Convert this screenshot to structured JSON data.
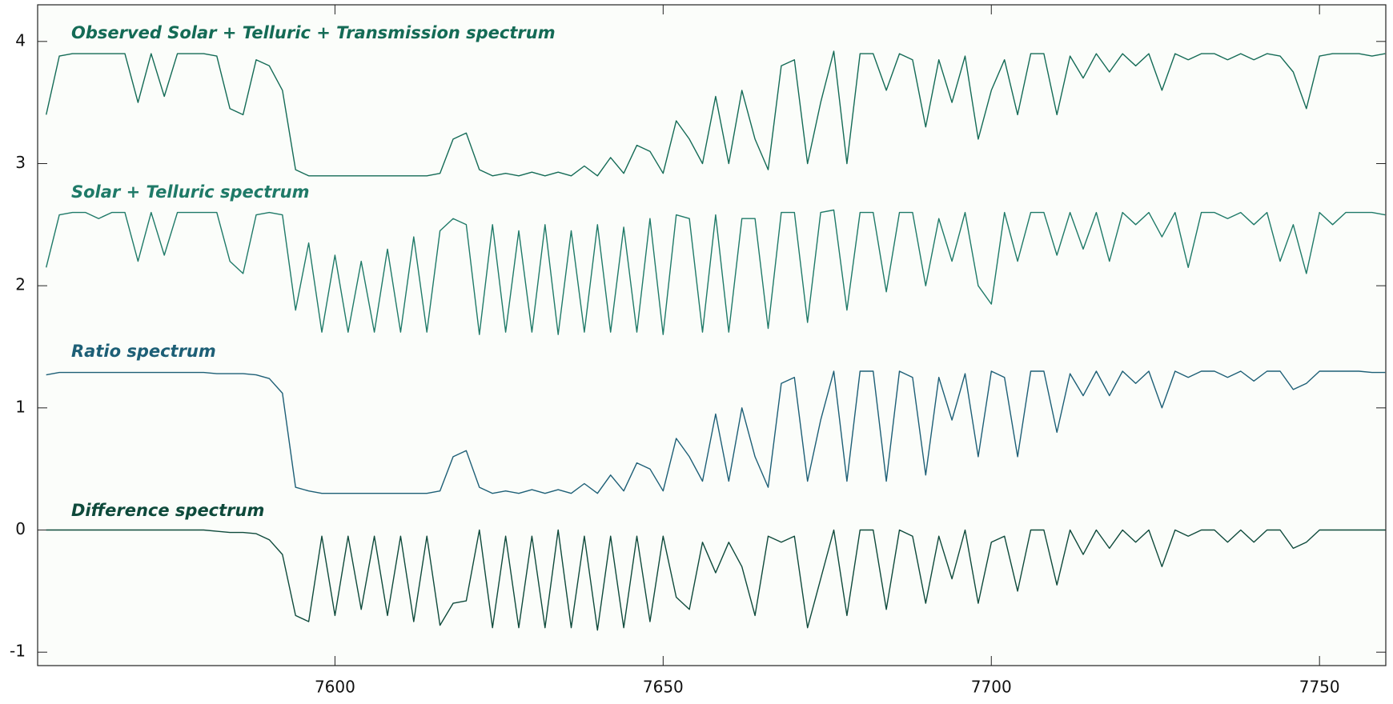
{
  "chart_data": {
    "type": "line",
    "x": [
      7556,
      7558,
      7560,
      7562,
      7564,
      7566,
      7568,
      7570,
      7572,
      7574,
      7576,
      7578,
      7580,
      7582,
      7584,
      7586,
      7588,
      7590,
      7592,
      7594,
      7596,
      7598,
      7600,
      7602,
      7604,
      7606,
      7608,
      7610,
      7612,
      7614,
      7616,
      7618,
      7620,
      7622,
      7624,
      7626,
      7628,
      7630,
      7632,
      7634,
      7636,
      7638,
      7640,
      7642,
      7644,
      7646,
      7648,
      7650,
      7652,
      7654,
      7656,
      7658,
      7660,
      7662,
      7664,
      7666,
      7668,
      7670,
      7672,
      7674,
      7676,
      7678,
      7680,
      7682,
      7684,
      7686,
      7688,
      7690,
      7692,
      7694,
      7696,
      7698,
      7700,
      7702,
      7704,
      7706,
      7708,
      7710,
      7712,
      7714,
      7716,
      7718,
      7720,
      7722,
      7724,
      7726,
      7728,
      7730,
      7732,
      7734,
      7736,
      7738,
      7740,
      7742,
      7744,
      7746,
      7748,
      7750,
      7752,
      7754,
      7756,
      7758,
      7760
    ],
    "series": [
      {
        "name": "Observed Solar + Telluric + Transmission spectrum",
        "color": "#146b56",
        "values": [
          3.4,
          3.88,
          3.9,
          3.9,
          3.9,
          3.9,
          3.9,
          3.5,
          3.9,
          3.55,
          3.9,
          3.9,
          3.9,
          3.88,
          3.45,
          3.4,
          3.85,
          3.8,
          3.6,
          2.95,
          2.9,
          2.9,
          2.9,
          2.9,
          2.9,
          2.9,
          2.9,
          2.9,
          2.9,
          2.9,
          2.92,
          3.2,
          3.25,
          2.95,
          2.9,
          2.92,
          2.9,
          2.93,
          2.9,
          2.93,
          2.9,
          2.98,
          2.9,
          3.05,
          2.92,
          3.15,
          3.1,
          2.92,
          3.35,
          3.2,
          3.0,
          3.55,
          3.0,
          3.6,
          3.2,
          2.95,
          3.8,
          3.85,
          3.0,
          3.5,
          3.92,
          3.0,
          3.9,
          3.9,
          3.6,
          3.9,
          3.85,
          3.3,
          3.85,
          3.5,
          3.88,
          3.2,
          3.6,
          3.85,
          3.4,
          3.9,
          3.9,
          3.4,
          3.88,
          3.7,
          3.9,
          3.75,
          3.9,
          3.8,
          3.9,
          3.6,
          3.9,
          3.85,
          3.9,
          3.9,
          3.85,
          3.9,
          3.85,
          3.9,
          3.88,
          3.75,
          3.45,
          3.88,
          3.9,
          3.9,
          3.9,
          3.88,
          3.9
        ]
      },
      {
        "name": "Solar + Telluric spectrum",
        "color": "#1f7a68",
        "values": [
          2.15,
          2.58,
          2.6,
          2.6,
          2.55,
          2.6,
          2.6,
          2.2,
          2.6,
          2.25,
          2.6,
          2.6,
          2.6,
          2.6,
          2.2,
          2.1,
          2.58,
          2.6,
          2.58,
          1.8,
          2.35,
          1.62,
          2.25,
          1.62,
          2.2,
          1.62,
          2.3,
          1.62,
          2.4,
          1.62,
          2.45,
          2.55,
          2.5,
          1.6,
          2.5,
          1.62,
          2.45,
          1.62,
          2.5,
          1.6,
          2.45,
          1.62,
          2.5,
          1.62,
          2.48,
          1.62,
          2.55,
          1.6,
          2.58,
          2.55,
          1.62,
          2.58,
          1.62,
          2.55,
          2.55,
          1.65,
          2.6,
          2.6,
          1.7,
          2.6,
          2.62,
          1.8,
          2.6,
          2.6,
          1.95,
          2.6,
          2.6,
          2.0,
          2.55,
          2.2,
          2.6,
          2.0,
          1.85,
          2.6,
          2.2,
          2.6,
          2.6,
          2.25,
          2.6,
          2.3,
          2.6,
          2.2,
          2.6,
          2.5,
          2.6,
          2.4,
          2.6,
          2.15,
          2.6,
          2.6,
          2.55,
          2.6,
          2.5,
          2.6,
          2.2,
          2.5,
          2.1,
          2.6,
          2.5,
          2.6,
          2.6,
          2.6,
          2.58
        ]
      },
      {
        "name": "Ratio spectrum",
        "color": "#1d5f76",
        "values": [
          1.27,
          1.29,
          1.29,
          1.29,
          1.29,
          1.29,
          1.29,
          1.29,
          1.29,
          1.29,
          1.29,
          1.29,
          1.29,
          1.28,
          1.28,
          1.28,
          1.27,
          1.24,
          1.12,
          0.35,
          0.32,
          0.3,
          0.3,
          0.3,
          0.3,
          0.3,
          0.3,
          0.3,
          0.3,
          0.3,
          0.32,
          0.6,
          0.65,
          0.35,
          0.3,
          0.32,
          0.3,
          0.33,
          0.3,
          0.33,
          0.3,
          0.38,
          0.3,
          0.45,
          0.32,
          0.55,
          0.5,
          0.32,
          0.75,
          0.6,
          0.4,
          0.95,
          0.4,
          1.0,
          0.6,
          0.35,
          1.2,
          1.25,
          0.4,
          0.9,
          1.3,
          0.4,
          1.3,
          1.3,
          0.4,
          1.3,
          1.25,
          0.45,
          1.25,
          0.9,
          1.28,
          0.6,
          1.3,
          1.25,
          0.6,
          1.3,
          1.3,
          0.8,
          1.28,
          1.1,
          1.3,
          1.1,
          1.3,
          1.2,
          1.3,
          1.0,
          1.3,
          1.25,
          1.3,
          1.3,
          1.25,
          1.3,
          1.22,
          1.3,
          1.3,
          1.15,
          1.2,
          1.3,
          1.3,
          1.3,
          1.3,
          1.29,
          1.29
        ]
      },
      {
        "name": "Difference spectrum",
        "color": "#0e4a3b",
        "values": [
          0.0,
          0.0,
          0.0,
          0.0,
          0.0,
          0.0,
          0.0,
          0.0,
          0.0,
          0.0,
          0.0,
          0.0,
          0.0,
          -0.01,
          -0.02,
          -0.02,
          -0.03,
          -0.08,
          -0.2,
          -0.7,
          -0.75,
          -0.05,
          -0.7,
          -0.05,
          -0.65,
          -0.05,
          -0.7,
          -0.05,
          -0.75,
          -0.05,
          -0.78,
          -0.6,
          -0.58,
          0.0,
          -0.8,
          -0.05,
          -0.8,
          -0.05,
          -0.8,
          0.0,
          -0.8,
          -0.05,
          -0.82,
          -0.05,
          -0.8,
          -0.05,
          -0.75,
          -0.05,
          -0.55,
          -0.65,
          -0.1,
          -0.35,
          -0.1,
          -0.3,
          -0.7,
          -0.05,
          -0.1,
          -0.05,
          -0.8,
          -0.4,
          0.0,
          -0.7,
          0.0,
          0.0,
          -0.65,
          0.0,
          -0.05,
          -0.6,
          -0.05,
          -0.4,
          0.0,
          -0.6,
          -0.1,
          -0.05,
          -0.5,
          0.0,
          0.0,
          -0.45,
          0.0,
          -0.2,
          0.0,
          -0.15,
          0.0,
          -0.1,
          0.0,
          -0.3,
          0.0,
          -0.05,
          0.0,
          0.0,
          -0.1,
          0.0,
          -0.1,
          0.0,
          0.0,
          -0.15,
          -0.1,
          0.0,
          0.0,
          0.0,
          0.0,
          0.0,
          0.0
        ]
      }
    ],
    "xlim": [
      7554.7,
      7760.1
    ],
    "xticks": [
      7600,
      7650,
      7700,
      7750
    ],
    "ylim": [
      -1.11,
      4.3
    ],
    "yticks": [
      -1,
      0,
      1,
      2,
      3,
      4
    ]
  }
}
